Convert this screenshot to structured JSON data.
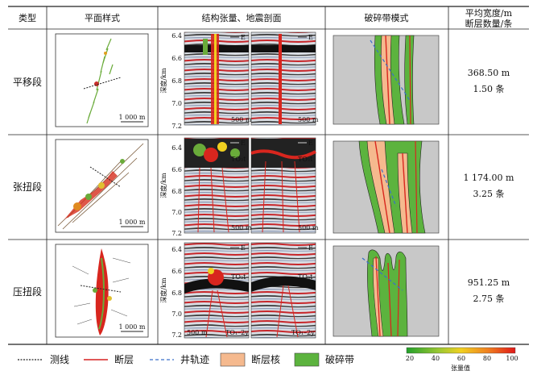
{
  "table": {
    "headers": {
      "type": "类型",
      "plan": "平面样式",
      "seismic": "结构张量、地震剖面",
      "model": "破碎带模式",
      "stats_line1": "平均宽度/m",
      "stats_line2": "断层数量/条"
    },
    "rows": [
      {
        "label": "平移段",
        "width": "368.50 m",
        "count": "1.50 条",
        "scale": "1 000 m",
        "seis_scale_left": "500 m",
        "seis_scale_right": "500 m",
        "horizon_left": "TO₃t",
        "horizon_right": "TO₃t",
        "bottom_left": "",
        "bottom_right": ""
      },
      {
        "label": "张扭段",
        "width": "1 174.00 m",
        "count": "3.25 条",
        "scale": "1 000 m",
        "seis_scale_left": "500 m",
        "seis_scale_right": "500 m",
        "horizon_left": "TO₃t",
        "horizon_right": "TO₃t",
        "bottom_left": "",
        "bottom_right": ""
      },
      {
        "label": "压扭段",
        "width": "951.25 m",
        "count": "2.75 条",
        "scale": "1 000 m",
        "seis_scale_left": "500 m",
        "seis_scale_right": "",
        "horizon_left": "TO₃t",
        "horizon_right": "TO₃t",
        "bottom_left": "TO₁–2y",
        "bottom_right": "TO₁–2y"
      }
    ],
    "depth_axis_label": "深度/km",
    "depth_ticks": [
      "6.4",
      "6.6",
      "6.8",
      "7.0",
      "7.2"
    ],
    "east_label": "E"
  },
  "legend": {
    "items": [
      "测线",
      "断层",
      "井轨迹",
      "断层核",
      "破碎带"
    ],
    "colorbar_ticks": [
      "20",
      "40",
      "60",
      "80",
      "100"
    ],
    "colorbar_title": "张量值",
    "colors": {
      "survey_line": "#222222",
      "fault": "#d62020",
      "well": "#3a6fc9",
      "fault_core": "#f5b98e",
      "damage_zone": "#5cb33e",
      "colorbar": [
        "#22a02a",
        "#9cc832",
        "#f0d020",
        "#f08020",
        "#e01818"
      ]
    }
  }
}
